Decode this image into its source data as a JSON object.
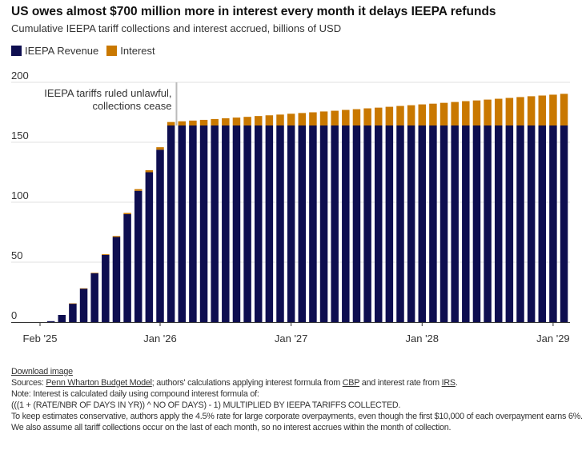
{
  "title": "US owes almost $700 million more in interest every month it delays IEEPA refunds",
  "subtitle": "Cumulative IEEPA tariff collections and interest accrued, billions of USD",
  "colors": {
    "revenue": "#0e0e50",
    "interest": "#c97800",
    "grid": "#e2e2e2"
  },
  "chart_data": {
    "type": "bar",
    "stacked": true,
    "categories": [
      "Feb 2025",
      "Mar 2025",
      "Apr 2025",
      "May 2025",
      "Jun 2025",
      "Jul 2025",
      "Aug 2025",
      "Sep 2025",
      "Oct 2025",
      "Nov 2025",
      "Dec 2025",
      "Jan 2026",
      "Feb 2026",
      "Mar 2026",
      "Apr 2026",
      "May 2026",
      "Jun 2026",
      "Jul 2026",
      "Aug 2026",
      "Sep 2026",
      "Oct 2026",
      "Nov 2026",
      "Dec 2026",
      "Jan 2027",
      "Feb 2027",
      "Mar 2027",
      "Apr 2027",
      "May 2027",
      "Jun 2027",
      "Jul 2027",
      "Aug 2027",
      "Sep 2027",
      "Oct 2027",
      "Nov 2027",
      "Dec 2027",
      "Jan 2028",
      "Feb 2028",
      "Mar 2028",
      "Apr 2028",
      "May 2028",
      "Jun 2028",
      "Jul 2028",
      "Aug 2028",
      "Sep 2028",
      "Oct 2028",
      "Nov 2028",
      "Dec 2028",
      "Jan 2029",
      "Feb 2029"
    ],
    "series": [
      {
        "name": "IEEPA Revenue",
        "values": [
          0,
          0.8,
          6,
          15.5,
          28,
          40.8,
          56,
          71,
          90,
          109.5,
          125,
          143.8,
          164,
          164,
          164,
          164,
          164,
          164,
          164,
          164,
          164,
          164,
          164,
          164,
          164,
          164,
          164,
          164,
          164,
          164,
          164,
          164,
          164,
          164,
          164,
          164,
          164,
          164,
          164,
          164,
          164,
          164,
          164,
          164,
          164,
          164,
          164,
          164,
          164
        ]
      },
      {
        "name": "Interest",
        "values": [
          0,
          0,
          0,
          0.1,
          0.2,
          0.4,
          0.6,
          0.8,
          1.1,
          1.4,
          1.7,
          2.1,
          2.9,
          3.5,
          4.1,
          4.7,
          5.4,
          6.0,
          6.6,
          7.2,
          7.9,
          8.5,
          9.1,
          9.8,
          10.4,
          11.0,
          11.7,
          12.3,
          13.0,
          13.6,
          14.3,
          14.9,
          15.6,
          16.3,
          16.9,
          17.6,
          18.2,
          18.9,
          19.6,
          20.3,
          20.9,
          21.6,
          22.3,
          23.0,
          23.7,
          24.4,
          25.0,
          25.7,
          26.4
        ]
      }
    ],
    "ylim": [
      0,
      200
    ],
    "yticks": [
      "0",
      "50",
      "100",
      "150",
      "200"
    ],
    "xticks": [
      {
        "index": 0,
        "label": "Feb '25"
      },
      {
        "index": 11,
        "label": "Jan '26"
      },
      {
        "index": 23,
        "label": "Jan '27"
      },
      {
        "index": 35,
        "label": "Jan '28"
      },
      {
        "index": 47,
        "label": "Jan '29"
      }
    ],
    "grid": true,
    "legend_position": "top-left",
    "annotation": {
      "after_index": 12,
      "lines": [
        "IEEPA tariffs ruled unlawful,",
        "collections cease"
      ]
    }
  },
  "footer": {
    "download": "Download image",
    "sources_prefix": "Sources: ",
    "source_pwbm": "Penn Wharton Budget Model",
    "sources_mid": "; authors' calculations applying interest formula from ",
    "source_cbp": "CBP",
    "sources_mid2": " and interest rate from ",
    "source_irs": "IRS",
    "sources_end": ".",
    "note1": "Note: Interest is calculated daily using compound interest formula of:",
    "note2": "(((1 + (RATE/NBR OF DAYS IN YR)) ^ NO OF DAYS) - 1) MULTIPLIED BY IEEPA TARIFFS COLLECTED.",
    "note3": "To keep estimates conservative, authors apply the 4.5% rate for large corporate overpayments, even though the first $10,000 of each overpayment earns 6%. We also assume all tariff collections occur on the last of each month, so no interest accrues within the month of collection."
  }
}
